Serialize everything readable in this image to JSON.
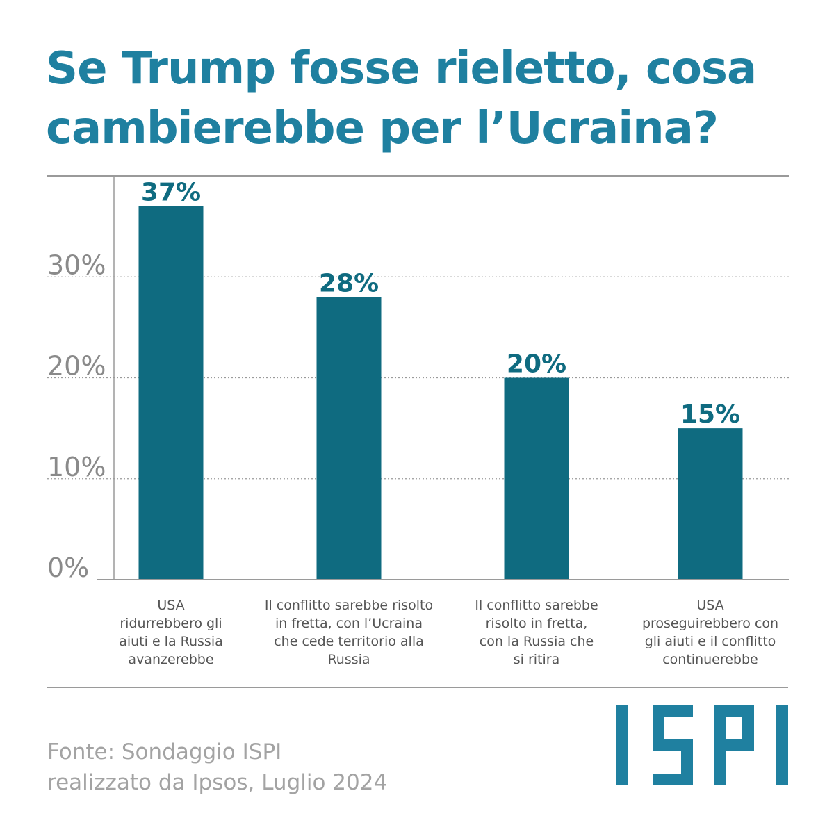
{
  "title_lines": [
    "Se Trump fosse rieletto, cosa",
    "cambierebbe per l’Ucraina?"
  ],
  "chart_data": {
    "type": "bar",
    "title": "Se Trump fosse rieletto, cosa cambierebbe per l’Ucraina?",
    "categories": [
      "USA ridurrebbero gli aiuti e la Russia avanzerebbe",
      "Il conflitto sarebbe risolto in fretta, con l’Ucraina che cede territorio alla Russia",
      "Il conflitto sarebbe risolto in fretta, con la Russia che si ritira",
      "USA proseguirebbero con gli aiuti e il conflitto continuerebbe"
    ],
    "category_lines": [
      [
        "USA",
        "ridurrebbero gli",
        "aiuti e la Russia",
        "avanzerebbe"
      ],
      [
        "Il conflitto sarebbe risolto",
        "in fretta, con l’Ucraina",
        "che cede territorio alla",
        "Russia"
      ],
      [
        "Il conflitto sarebbe",
        "risolto in fretta,",
        "con la Russia che",
        "si ritira"
      ],
      [
        "USA",
        "proseguirebbero con",
        "gli aiuti e il conflitto",
        "continuerebbe"
      ]
    ],
    "values": [
      37,
      28,
      20,
      15
    ],
    "data_labels": [
      "37%",
      "28%",
      "20%",
      "15%"
    ],
    "yticks": [
      0,
      10,
      20,
      30
    ],
    "ytick_labels": [
      "0%",
      "10%",
      "20%",
      "30%"
    ],
    "ylim": [
      0,
      40
    ],
    "xlabel": "",
    "ylabel": "",
    "grid": true,
    "bar_color": "#0f6b80",
    "label_color": "#0f6b80"
  },
  "source_lines": [
    "Fonte: Sondaggio ISPI",
    "realizzato da Ipsos, Luglio 2024"
  ],
  "logo_text": "ISPI",
  "colors": {
    "title": "#1f80a0",
    "logo": "#1f80a0",
    "axis_text": "#8a8a8a"
  }
}
